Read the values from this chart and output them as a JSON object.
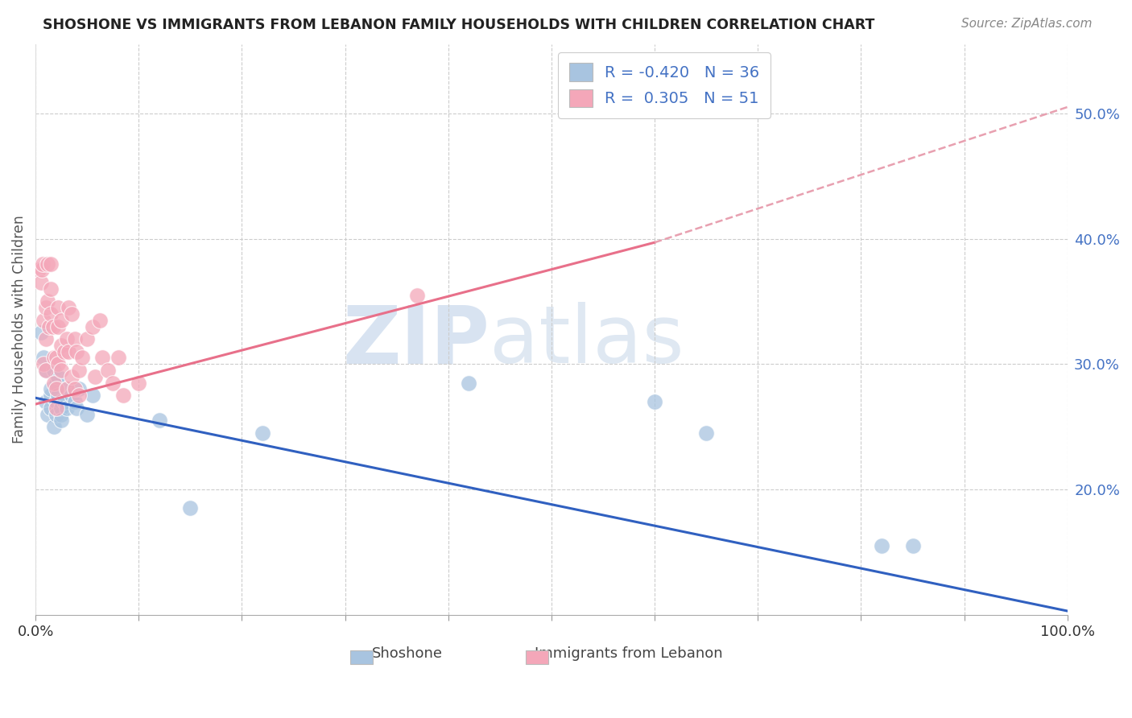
{
  "title": "SHOSHONE VS IMMIGRANTS FROM LEBANON FAMILY HOUSEHOLDS WITH CHILDREN CORRELATION CHART",
  "source": "Source: ZipAtlas.com",
  "ylabel": "Family Households with Children",
  "xlim": [
    0.0,
    1.0
  ],
  "ylim": [
    0.1,
    0.555
  ],
  "yticks": [
    0.2,
    0.3,
    0.4,
    0.5
  ],
  "ytick_labels": [
    "20.0%",
    "30.0%",
    "40.0%",
    "50.0%"
  ],
  "xticks": [
    0.0,
    0.1,
    0.2,
    0.3,
    0.4,
    0.5,
    0.6,
    0.7,
    0.8,
    0.9,
    1.0
  ],
  "xtick_labels": [
    "0.0%",
    "",
    "",
    "",
    "",
    "",
    "",
    "",
    "",
    "",
    "100.0%"
  ],
  "background_color": "#ffffff",
  "grid_color": "#cccccc",
  "watermark_zip": "ZIP",
  "watermark_atlas": "atlas",
  "shoshone_color": "#a8c4e0",
  "lebanon_color": "#f4a7b9",
  "shoshone_line_color": "#3060c0",
  "lebanon_line_color": "#e8708a",
  "dashed_line_color": "#e8a0b0",
  "R_shoshone": -0.42,
  "N_shoshone": 36,
  "R_lebanon": 0.305,
  "N_lebanon": 51,
  "shoshone_x": [
    0.005,
    0.008,
    0.01,
    0.01,
    0.012,
    0.015,
    0.015,
    0.015,
    0.018,
    0.018,
    0.02,
    0.02,
    0.02,
    0.022,
    0.022,
    0.025,
    0.025,
    0.025,
    0.025,
    0.028,
    0.03,
    0.03,
    0.035,
    0.038,
    0.04,
    0.042,
    0.05,
    0.055,
    0.12,
    0.15,
    0.22,
    0.42,
    0.6,
    0.65,
    0.82,
    0.85
  ],
  "shoshone_y": [
    0.325,
    0.305,
    0.295,
    0.27,
    0.26,
    0.265,
    0.275,
    0.28,
    0.25,
    0.295,
    0.285,
    0.27,
    0.26,
    0.29,
    0.275,
    0.27,
    0.26,
    0.265,
    0.255,
    0.27,
    0.28,
    0.265,
    0.275,
    0.27,
    0.265,
    0.28,
    0.26,
    0.275,
    0.255,
    0.185,
    0.245,
    0.285,
    0.27,
    0.245,
    0.155,
    0.155
  ],
  "lebanon_x": [
    0.003,
    0.005,
    0.006,
    0.007,
    0.008,
    0.008,
    0.01,
    0.01,
    0.01,
    0.012,
    0.012,
    0.013,
    0.015,
    0.015,
    0.015,
    0.017,
    0.018,
    0.018,
    0.02,
    0.02,
    0.02,
    0.022,
    0.022,
    0.022,
    0.025,
    0.025,
    0.025,
    0.028,
    0.03,
    0.03,
    0.032,
    0.032,
    0.035,
    0.035,
    0.038,
    0.038,
    0.04,
    0.042,
    0.042,
    0.045,
    0.05,
    0.055,
    0.058,
    0.062,
    0.065,
    0.07,
    0.075,
    0.08,
    0.085,
    0.1,
    0.37
  ],
  "lebanon_y": [
    0.375,
    0.365,
    0.375,
    0.38,
    0.335,
    0.3,
    0.345,
    0.32,
    0.295,
    0.38,
    0.35,
    0.33,
    0.38,
    0.36,
    0.34,
    0.33,
    0.305,
    0.285,
    0.305,
    0.28,
    0.265,
    0.345,
    0.33,
    0.3,
    0.335,
    0.315,
    0.295,
    0.31,
    0.32,
    0.28,
    0.345,
    0.31,
    0.34,
    0.29,
    0.32,
    0.28,
    0.31,
    0.295,
    0.275,
    0.305,
    0.32,
    0.33,
    0.29,
    0.335,
    0.305,
    0.295,
    0.285,
    0.305,
    0.275,
    0.285,
    0.355
  ],
  "shoshone_trend_x": [
    0.0,
    1.0
  ],
  "shoshone_trend_y": [
    0.273,
    0.103
  ],
  "lebanon_trend_x": [
    0.0,
    0.6
  ],
  "lebanon_trend_y": [
    0.268,
    0.397
  ],
  "dashed_trend_x": [
    0.6,
    1.0
  ],
  "dashed_trend_y": [
    0.397,
    0.505
  ]
}
